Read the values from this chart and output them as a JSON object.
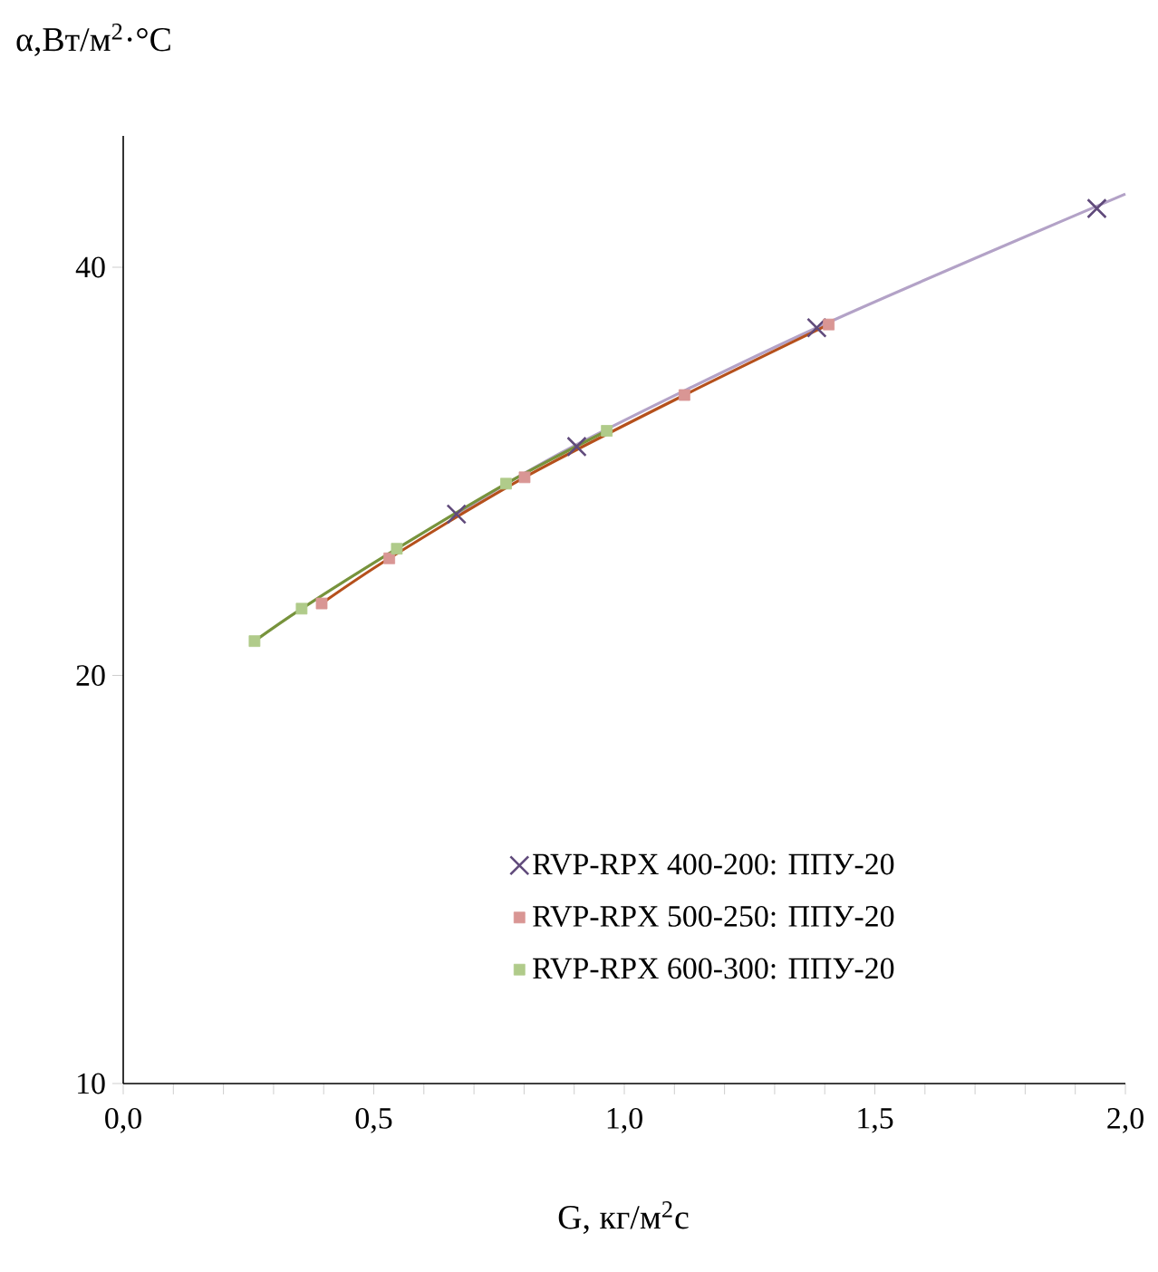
{
  "chart_data": {
    "type": "scatter",
    "xlabel": "G, кг/м$^{2}$с",
    "ylabel": "α,Вт/м$^{2}$·°C",
    "log": "y",
    "grid": false,
    "legend": "bottom",
    "xlim": [
      0,
      2.0
    ],
    "xticks": [
      {
        "value": 0,
        "label": "0,0"
      },
      {
        "value": 0.1,
        "label": null
      },
      {
        "value": 0.2,
        "label": null
      },
      {
        "value": 0.3,
        "label": null
      },
      {
        "value": 0.4,
        "label": null
      },
      {
        "value": 0.5,
        "label": "0,5"
      },
      {
        "value": 0.6,
        "label": null
      },
      {
        "value": 0.7,
        "label": null
      },
      {
        "value": 0.8,
        "label": null
      },
      {
        "value": 0.9,
        "label": null
      },
      {
        "value": 1.0,
        "label": "1,0"
      },
      {
        "value": 1.1,
        "label": null
      },
      {
        "value": 1.2,
        "label": null
      },
      {
        "value": 1.3,
        "label": null
      },
      {
        "value": 1.4,
        "label": null
      },
      {
        "value": 1.5,
        "label": "1,5"
      },
      {
        "value": 1.6,
        "label": null
      },
      {
        "value": 1.7,
        "label": null
      },
      {
        "value": 1.8,
        "label": null
      },
      {
        "value": 1.9,
        "label": null
      },
      {
        "value": 2.0,
        "label": "2,0"
      }
    ],
    "ylim": [
      10,
      50
    ],
    "yticks": [
      10,
      20,
      40
    ],
    "series": [
      {
        "type": "line",
        "color": "#b3a2c7",
        "x": [
          0.665,
          0.905,
          1.384,
          2.0
        ],
        "values": [
          26.3,
          29.6,
          36.1,
          45.3
        ]
      },
      {
        "type": "line",
        "color": "#b5501c",
        "x": [
          0.396,
          0.531,
          0.801,
          1.12,
          1.408
        ],
        "values": [
          22.6,
          24.4,
          28.0,
          32.2,
          36.3
        ]
      },
      {
        "type": "line",
        "color": "#77933c",
        "x": [
          0.262,
          0.356,
          0.546,
          0.764,
          0.965
        ],
        "values": [
          21.2,
          22.4,
          24.8,
          27.7,
          30.3
        ]
      },
      {
        "name": "RVP-RPX 400-200: ППУ-20",
        "marker": "cross",
        "color": "#604a7b",
        "x": [
          0.665,
          0.905,
          1.384,
          1.943
        ],
        "values": [
          26.3,
          29.5,
          36.1,
          44.2
        ]
      },
      {
        "name": "RVP-RPX 500-250: ППУ-20",
        "marker": "square",
        "color": "#d99694",
        "x": [
          0.396,
          0.531,
          0.801,
          1.12,
          1.408
        ],
        "values": [
          22.6,
          24.4,
          28.0,
          32.2,
          36.3
        ]
      },
      {
        "name": "RVP-RPX 600-300: ППУ-20",
        "marker": "square",
        "color": "#b0cb8a",
        "x": [
          0.262,
          0.356,
          0.546,
          0.764,
          0.965
        ],
        "values": [
          21.2,
          22.4,
          24.8,
          27.7,
          30.3
        ]
      }
    ]
  }
}
